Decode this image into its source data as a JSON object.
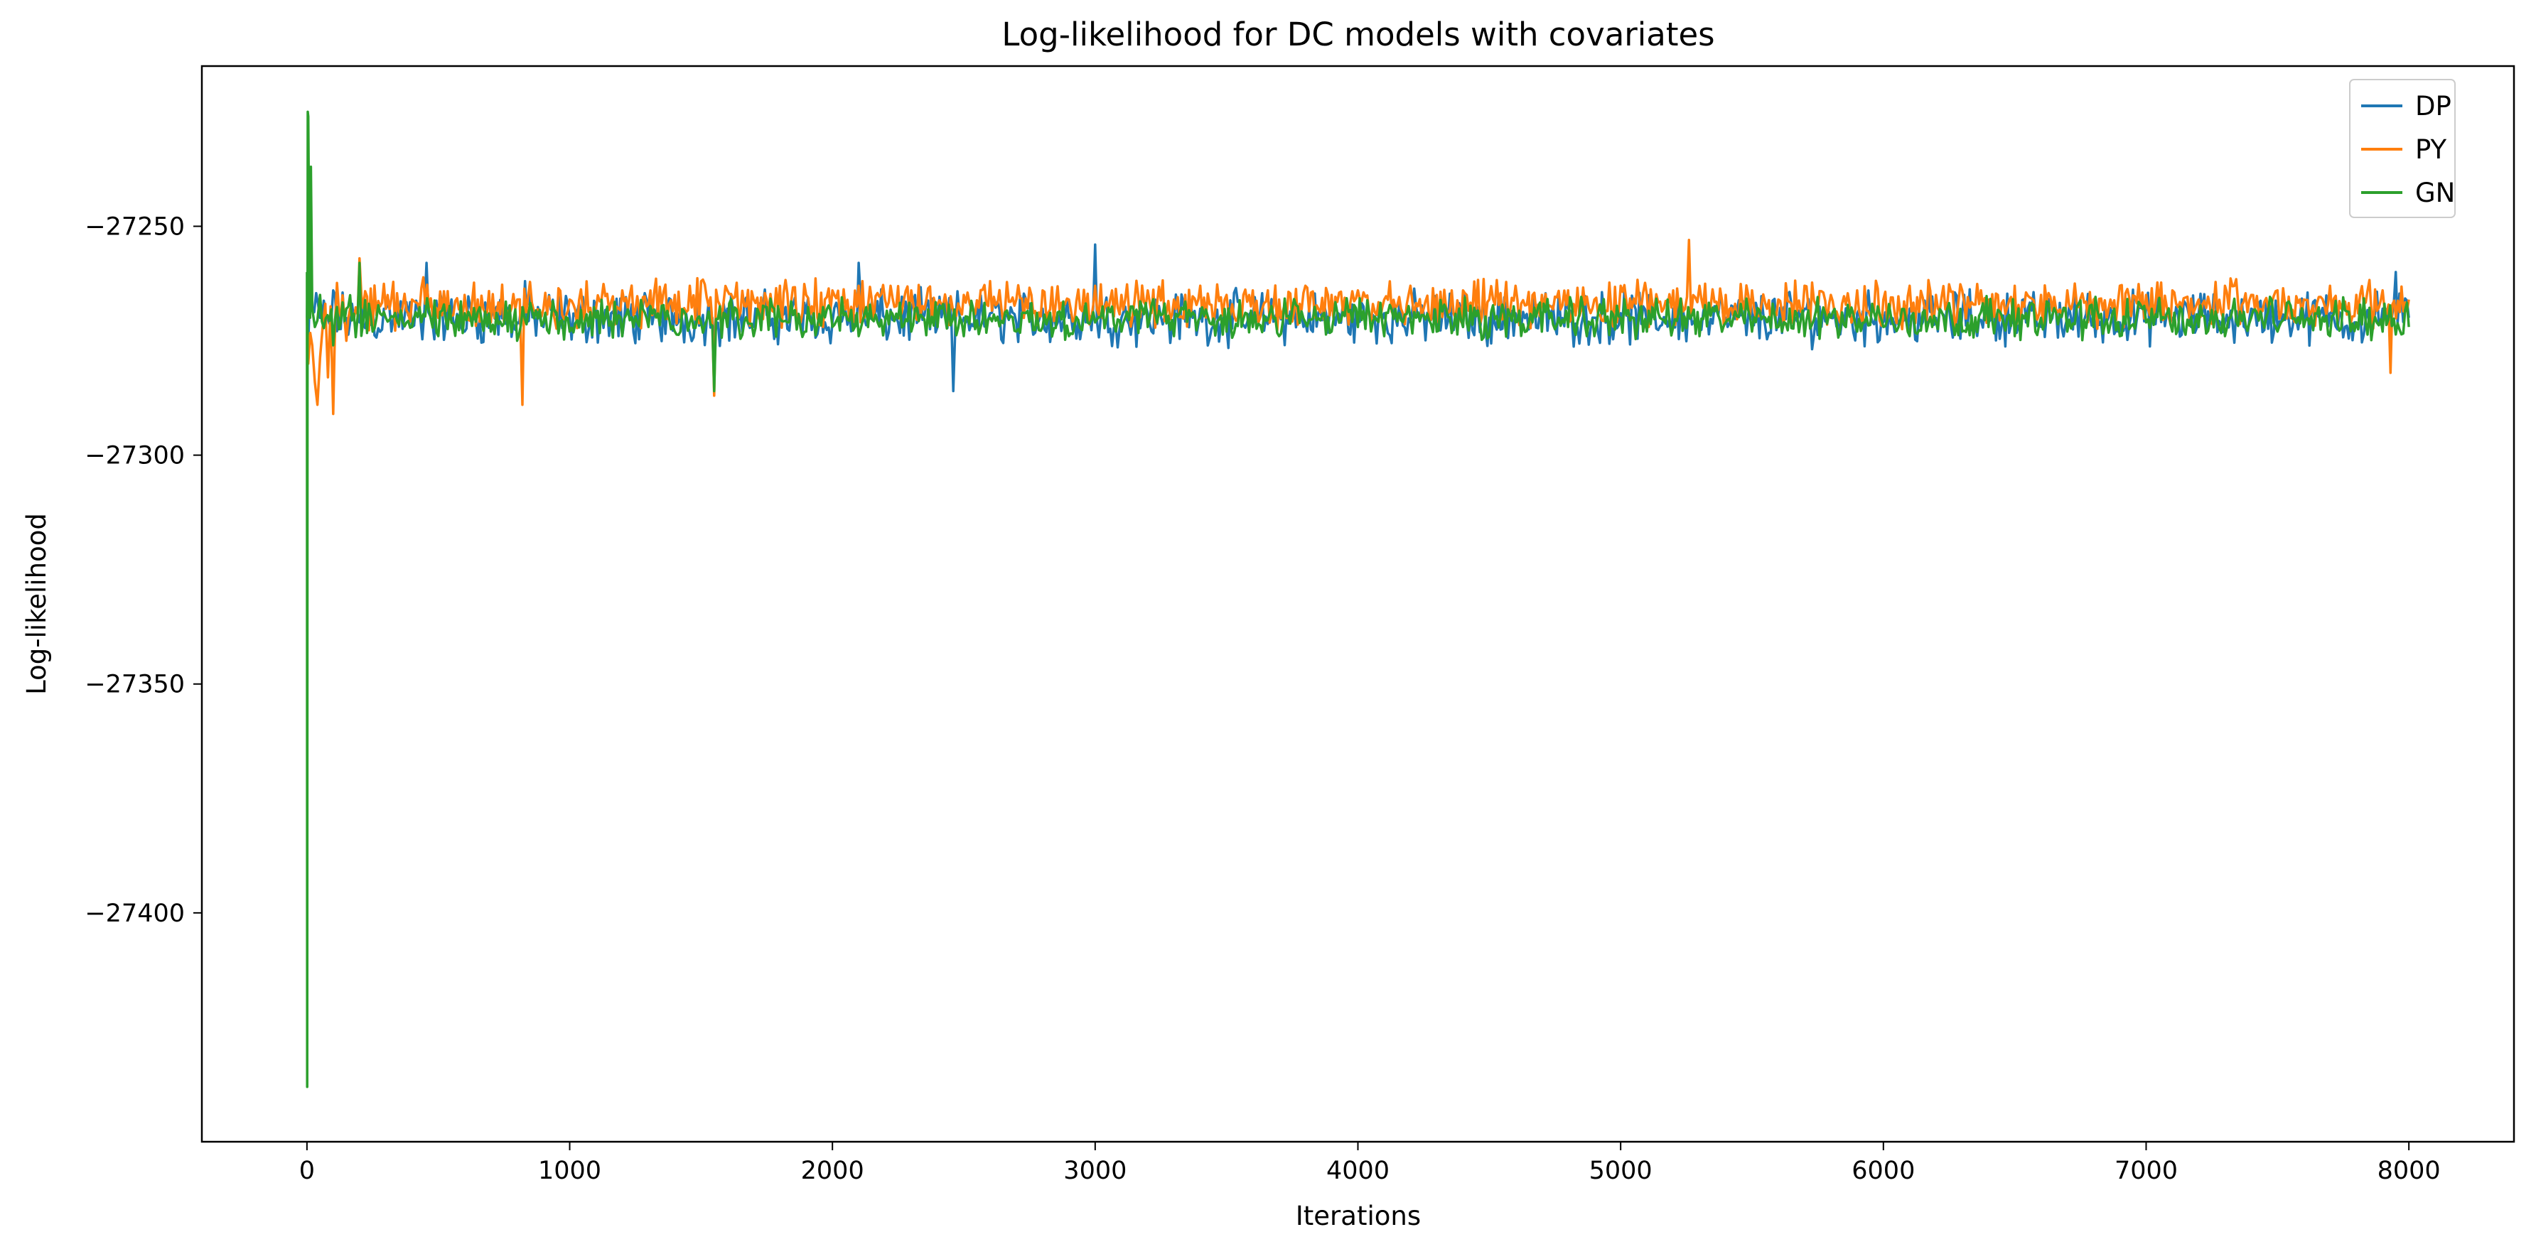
{
  "chart_data": {
    "type": "line",
    "title": "Log-likelihood for DC models with covariates",
    "xlabel": "Iterations",
    "ylabel": "Log-likelihood",
    "xlim": [
      -400,
      8400
    ],
    "ylim": [
      -27450,
      -27215
    ],
    "xticks": [
      0,
      1000,
      2000,
      3000,
      4000,
      5000,
      6000,
      7000,
      8000
    ],
    "yticks": [
      -27250,
      -27300,
      -27350,
      -27400
    ],
    "ytick_labels": [
      "−27250",
      "−27300",
      "−27350",
      "−27400"
    ],
    "grid": false,
    "legend_position": "top-right",
    "series": [
      {
        "name": "DP",
        "color": "#1f77b4",
        "x": [
          0,
          2,
          5,
          10,
          20,
          50,
          100,
          200,
          300,
          400,
          455,
          500,
          600,
          700,
          800,
          830,
          900,
          1000,
          1100,
          1200,
          1300,
          1400,
          1500,
          1600,
          1700,
          1800,
          1900,
          2000,
          2100,
          2200,
          2300,
          2400,
          2460,
          2500,
          2600,
          2700,
          2800,
          2900,
          3000,
          3100,
          3200,
          3300,
          3400,
          3500,
          3600,
          3700,
          3800,
          3900,
          4000,
          4100,
          4200,
          4300,
          4400,
          4500,
          4600,
          4700,
          4800,
          4900,
          5000,
          5100,
          5200,
          5300,
          5400,
          5500,
          5600,
          5700,
          5800,
          5900,
          6000,
          6100,
          6200,
          6300,
          6400,
          6500,
          6600,
          6700,
          6800,
          6900,
          7000,
          7100,
          7200,
          7300,
          7400,
          7500,
          7600,
          7700,
          7800,
          7900,
          7950,
          8000
        ],
        "values": [
          -27270,
          -27262,
          -27276,
          -27266,
          -27268,
          -27270,
          -27264,
          -27271,
          -27268,
          -27272,
          -27258,
          -27270,
          -27273,
          -27269,
          -27271,
          -27262,
          -27272,
          -27270,
          -27268,
          -27274,
          -27270,
          -27269,
          -27271,
          -27268,
          -27272,
          -27270,
          -27269,
          -27271,
          -27258,
          -27270,
          -27268,
          -27272,
          -27286,
          -27270,
          -27269,
          -27271,
          -27268,
          -27270,
          -27254,
          -27270,
          -27269,
          -27271,
          -27268,
          -27272,
          -27270,
          -27269,
          -27271,
          -27268,
          -27270,
          -27269,
          -27271,
          -27268,
          -27272,
          -27270,
          -27269,
          -27271,
          -27268,
          -27270,
          -27269,
          -27271,
          -27268,
          -27272,
          -27270,
          -27269,
          -27271,
          -27268,
          -27270,
          -27269,
          -27271,
          -27268,
          -27270,
          -27269,
          -27271,
          -27268,
          -27272,
          -27270,
          -27269,
          -27271,
          -27268,
          -27270,
          -27269,
          -27271,
          -27268,
          -27272,
          -27270,
          -27269,
          -27271,
          -27268,
          -27260,
          -27270
        ]
      },
      {
        "name": "PY",
        "color": "#ff7f0e",
        "x": [
          0,
          5,
          20,
          40,
          60,
          80,
          100,
          150,
          200,
          250,
          300,
          400,
          500,
          600,
          700,
          800,
          820,
          900,
          1000,
          1100,
          1200,
          1300,
          1400,
          1500,
          1550,
          1600,
          1700,
          1800,
          1900,
          2000,
          2100,
          2200,
          2300,
          2400,
          2500,
          2600,
          2700,
          2800,
          2900,
          3000,
          3100,
          3200,
          3300,
          3400,
          3500,
          3600,
          3700,
          3800,
          3900,
          4000,
          4100,
          4200,
          4300,
          4400,
          4500,
          4600,
          4700,
          4800,
          4900,
          5000,
          5100,
          5200,
          5260,
          5300,
          5400,
          5500,
          5600,
          5700,
          5800,
          5900,
          6000,
          6100,
          6200,
          6300,
          6400,
          6500,
          6600,
          6700,
          6800,
          6900,
          7000,
          7100,
          7200,
          7300,
          7400,
          7500,
          7600,
          7700,
          7800,
          7900,
          7930,
          8000
        ],
        "values": [
          -27270,
          -27280,
          -27276,
          -27289,
          -27272,
          -27283,
          -27291,
          -27275,
          -27257,
          -27272,
          -27268,
          -27266,
          -27270,
          -27265,
          -27271,
          -27266,
          -27289,
          -27268,
          -27266,
          -27268,
          -27264,
          -27267,
          -27265,
          -27262,
          -27287,
          -27264,
          -27266,
          -27263,
          -27265,
          -27264,
          -27263,
          -27266,
          -27264,
          -27267,
          -27265,
          -27262,
          -27266,
          -27264,
          -27266,
          -27263,
          -27265,
          -27264,
          -27266,
          -27263,
          -27265,
          -27264,
          -27266,
          -27263,
          -27265,
          -27264,
          -27266,
          -27263,
          -27265,
          -27264,
          -27266,
          -27263,
          -27265,
          -27264,
          -27266,
          -27263,
          -27265,
          -27264,
          -27253,
          -27263,
          -27265,
          -27264,
          -27266,
          -27263,
          -27265,
          -27264,
          -27266,
          -27263,
          -27265,
          -27264,
          -27266,
          -27263,
          -27265,
          -27264,
          -27266,
          -27263,
          -27265,
          -27264,
          -27266,
          -27263,
          -27265,
          -27264,
          -27266,
          -27263,
          -27265,
          -27264,
          -27282,
          -27266
        ]
      },
      {
        "name": "GN",
        "color": "#2ca02c",
        "x": [
          0,
          1,
          2,
          3,
          5,
          8,
          12,
          15,
          20,
          30,
          50,
          100,
          150,
          200,
          250,
          300,
          400,
          500,
          600,
          700,
          800,
          900,
          1000,
          1100,
          1200,
          1300,
          1400,
          1500,
          1550,
          1600,
          1700,
          1800,
          1900,
          2000,
          2100,
          2200,
          2300,
          2400,
          2500,
          2600,
          2700,
          2800,
          2900,
          3000,
          3100,
          3200,
          3300,
          3400,
          3500,
          3600,
          3700,
          3800,
          3900,
          4000,
          4100,
          4200,
          4300,
          4400,
          4500,
          4600,
          4700,
          4800,
          4900,
          5000,
          5100,
          5200,
          5300,
          5400,
          5500,
          5600,
          5700,
          5800,
          5900,
          6000,
          6100,
          6200,
          6300,
          6400,
          6500,
          6600,
          6700,
          6800,
          6900,
          7000,
          7100,
          7200,
          7300,
          7400,
          7500,
          7600,
          7700,
          7800,
          7900,
          8000
        ],
        "values": [
          -27260,
          -27438,
          -27290,
          -27225,
          -27226,
          -27250,
          -27270,
          -27237,
          -27268,
          -27272,
          -27265,
          -27276,
          -27268,
          -27258,
          -27273,
          -27270,
          -27272,
          -27274,
          -27269,
          -27273,
          -27275,
          -27271,
          -27273,
          -27270,
          -27274,
          -27272,
          -27273,
          -27271,
          -27286,
          -27272,
          -27274,
          -27270,
          -27273,
          -27272,
          -27274,
          -27271,
          -27273,
          -27272,
          -27274,
          -27270,
          -27273,
          -27272,
          -27274,
          -27271,
          -27273,
          -27272,
          -27274,
          -27270,
          -27273,
          -27272,
          -27274,
          -27271,
          -27273,
          -27272,
          -27274,
          -27270,
          -27273,
          -27272,
          -27274,
          -27271,
          -27273,
          -27272,
          -27274,
          -27270,
          -27273,
          -27272,
          -27274,
          -27271,
          -27273,
          -27272,
          -27274,
          -27270,
          -27273,
          -27272,
          -27274,
          -27271,
          -27273,
          -27272,
          -27274,
          -27270,
          -27273,
          -27272,
          -27274,
          -27271,
          -27273,
          -27272,
          -27274,
          -27270,
          -27273,
          -27272,
          -27274,
          -27271,
          -27273,
          -27272
        ]
      }
    ]
  }
}
